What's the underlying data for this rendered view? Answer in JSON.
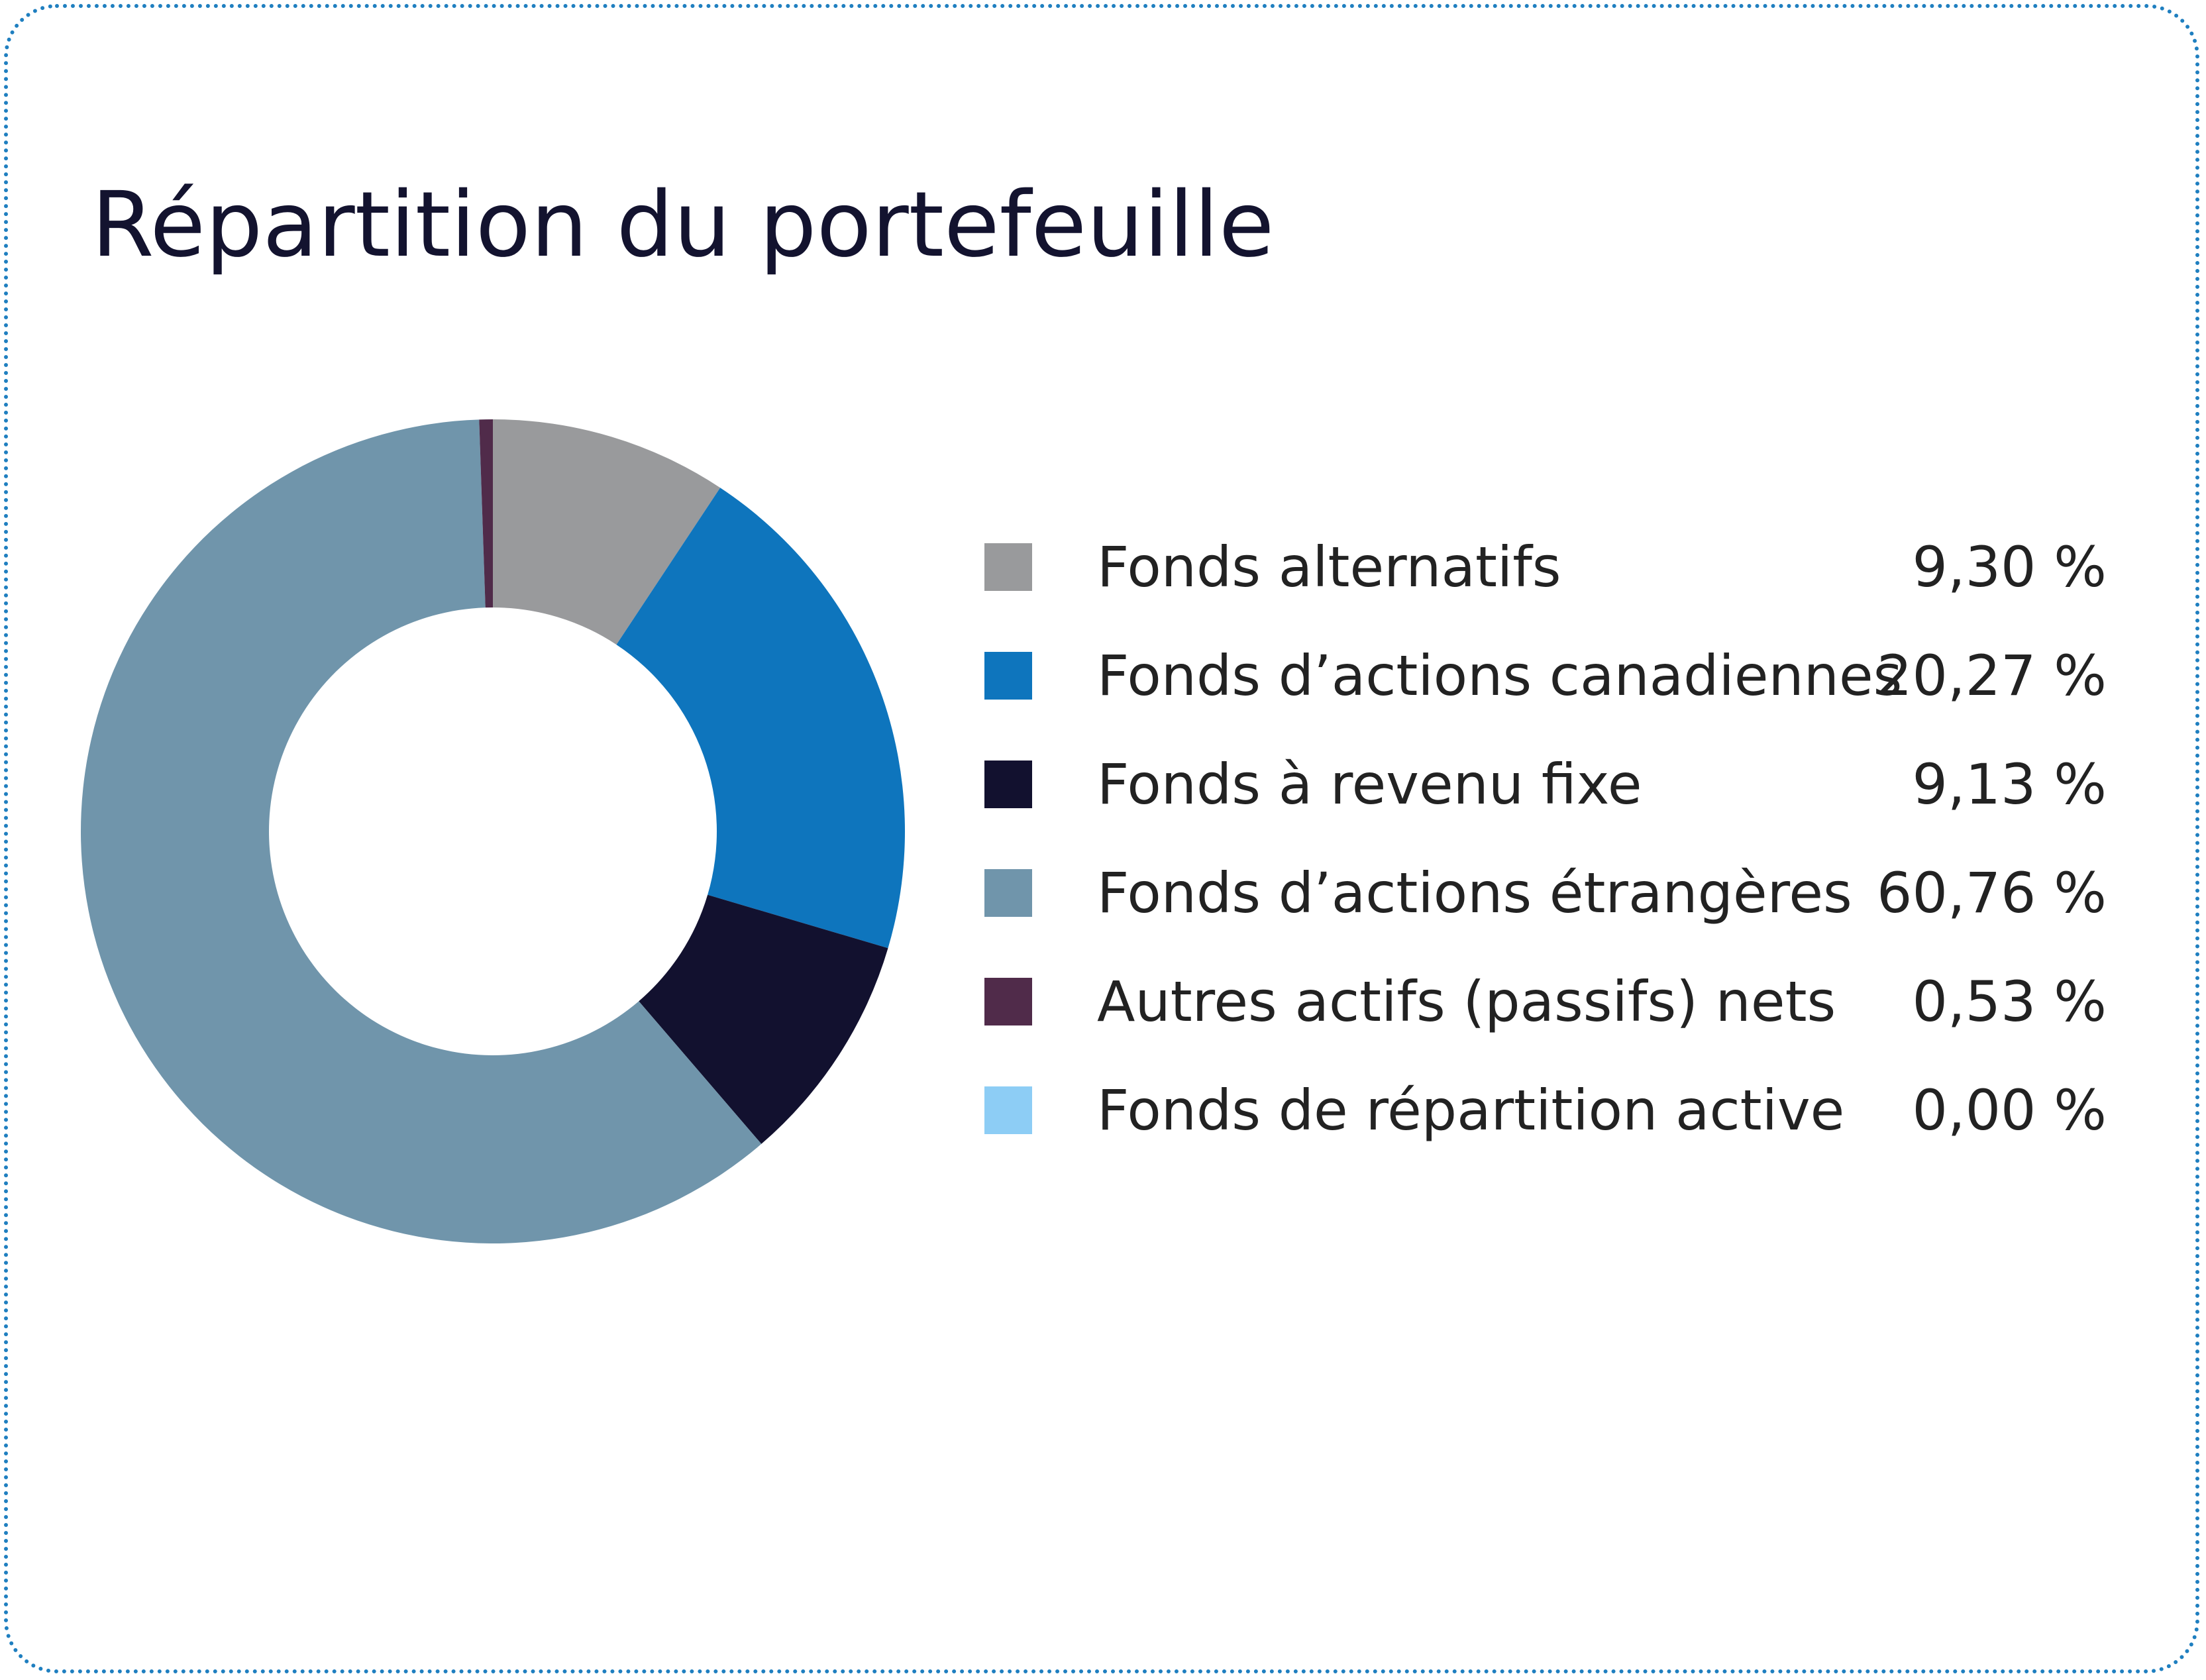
{
  "chart_data": {
    "type": "pie",
    "title": "Répartition du portefeuille",
    "slices": [
      {
        "label": "Fonds alternatifs",
        "value": 9.3,
        "display": "9,30 %",
        "color": "#999a9c"
      },
      {
        "label": "Fonds d’actions canadiennes",
        "value": 20.27,
        "display": "20,27 %",
        "color": "#0e75bd"
      },
      {
        "label": "Fonds à revenu fixe",
        "value": 9.13,
        "display": "9,13 %",
        "color": "#12112f"
      },
      {
        "label": "Fonds d’actions étrangères",
        "value": 60.76,
        "display": "60,76 %",
        "color": "#7095ab"
      },
      {
        "label": "Autres actifs (passifs) nets",
        "value": 0.53,
        "display": "0,53 %",
        "color": "#502b4a"
      },
      {
        "label": "Fonds de répartition active",
        "value": 0.0,
        "display": "0,00 %",
        "color": "#8dcdf5"
      }
    ],
    "legend_position": "right",
    "hole": true
  },
  "colors": {
    "border": "#1f7fc0",
    "title": "#13132f",
    "text": "#222222"
  }
}
